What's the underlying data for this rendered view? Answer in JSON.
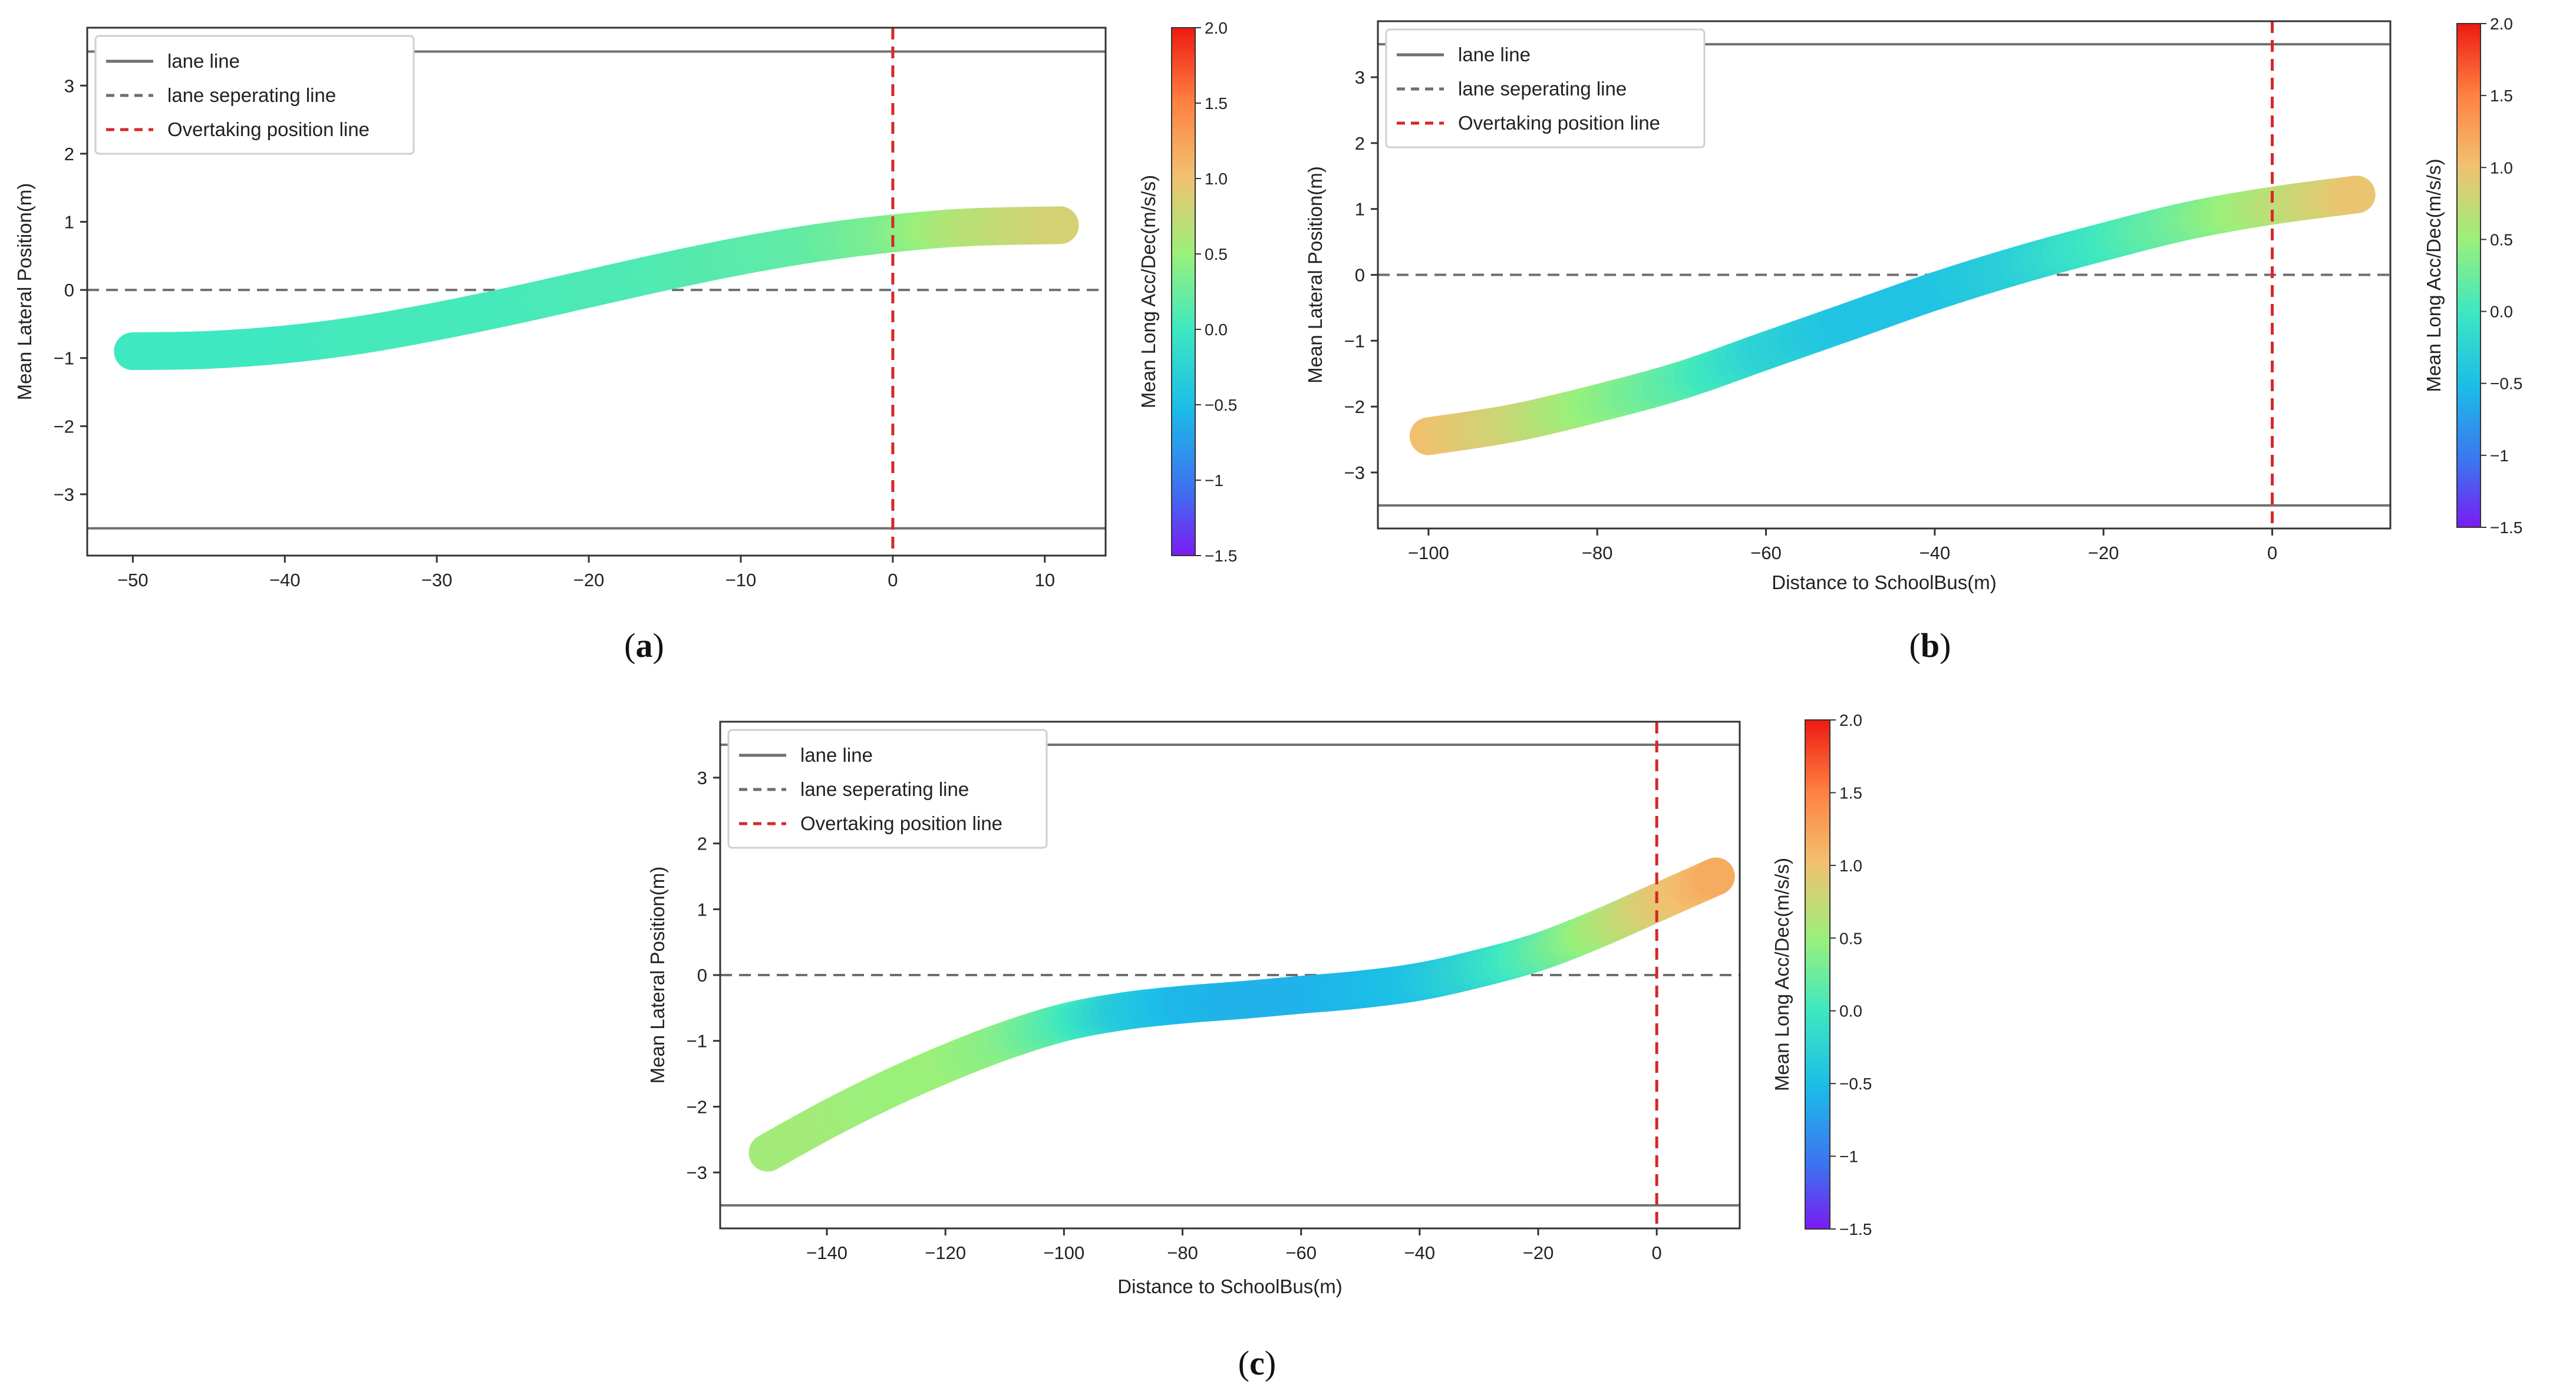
{
  "figure": {
    "colorbar_label": "Mean Long Acc/Dec(m/s/s)",
    "colorbar_range": [
      -1.5,
      2.0
    ],
    "colorbar_ticks": [
      "2.0",
      "1.5",
      "1.0",
      "0.5",
      "0.0",
      "−0.5",
      "−1",
      "−1.5"
    ],
    "colorbar_tick_values": [
      2.0,
      1.5,
      1.0,
      0.5,
      0.0,
      -0.5,
      -1.0,
      -1.5
    ],
    "legend": {
      "lane_line": "lane line",
      "separating_line": "lane seperating line",
      "overtaking_line": "Overtaking position line"
    },
    "colors": {
      "lane_line": "#707070",
      "separating_line": "#6e6e6e",
      "overtaking_line": "#d62728"
    }
  },
  "chart_data": [
    {
      "type": "line",
      "panel": "(a)",
      "caption_letter": "a",
      "ylabel": "Mean Lateral Position(m)",
      "xlabel": "",
      "xlim": [
        -53,
        14
      ],
      "ylim": [
        -3.9,
        3.85
      ],
      "xticks": [
        -50,
        -40,
        -30,
        -20,
        -10,
        0,
        10
      ],
      "xtick_labels": [
        "−50",
        "−40",
        "−30",
        "−20",
        "−10",
        "0",
        "10"
      ],
      "yticks": [
        -3,
        -2,
        -1,
        0,
        1,
        2,
        3
      ],
      "ytick_labels": [
        "−3",
        "−2",
        "−1",
        "0",
        "1",
        "2",
        "3"
      ],
      "lane_lines": [
        3.5,
        -3.5
      ],
      "separating_line": 0,
      "overtaking_position": 0,
      "trajectory": {
        "x": [
          -50,
          -45,
          -40,
          -35,
          -30,
          -25,
          -20,
          -15,
          -10,
          -5,
          0,
          5,
          11
        ],
        "y": [
          -0.9,
          -0.88,
          -0.8,
          -0.66,
          -0.46,
          -0.23,
          0.02,
          0.27,
          0.5,
          0.69,
          0.83,
          0.92,
          0.95
        ],
        "acc": [
          0.0,
          0.0,
          0.0,
          0.05,
          0.05,
          0.05,
          0.08,
          0.1,
          0.15,
          0.2,
          0.35,
          0.65,
          0.85
        ]
      }
    },
    {
      "type": "line",
      "panel": "(b)",
      "caption_letter": "b",
      "ylabel": "Mean Lateral Position(m)",
      "xlabel": "Distance to SchoolBus(m)",
      "xlim": [
        -106,
        14
      ],
      "ylim": [
        -3.85,
        3.85
      ],
      "xticks": [
        -100,
        -80,
        -60,
        -40,
        -20,
        0
      ],
      "xtick_labels": [
        "−100",
        "−80",
        "−60",
        "−40",
        "−20",
        "0"
      ],
      "yticks": [
        -3,
        -2,
        -1,
        0,
        1,
        2,
        3
      ],
      "ytick_labels": [
        "−3",
        "−2",
        "−1",
        "0",
        "1",
        "2",
        "3"
      ],
      "lane_lines": [
        3.5,
        -3.5
      ],
      "separating_line": 0,
      "overtaking_position": 0,
      "trajectory": {
        "x": [
          -100,
          -90,
          -80,
          -70,
          -60,
          -50,
          -40,
          -30,
          -20,
          -10,
          0,
          10
        ],
        "y": [
          -2.45,
          -2.25,
          -1.95,
          -1.6,
          -1.15,
          -0.7,
          -0.25,
          0.15,
          0.5,
          0.82,
          1.05,
          1.22
        ],
        "acc": [
          1.05,
          0.8,
          0.45,
          0.15,
          -0.25,
          -0.45,
          -0.45,
          -0.3,
          0.0,
          0.3,
          0.65,
          1.0
        ]
      }
    },
    {
      "type": "line",
      "panel": "(c)",
      "caption_letter": "c",
      "ylabel": "Mean Lateral Position(m)",
      "xlabel": "Distance to SchoolBus(m)",
      "xlim": [
        -158,
        14
      ],
      "ylim": [
        -3.85,
        3.85
      ],
      "xticks": [
        -140,
        -120,
        -100,
        -80,
        -60,
        -40,
        -20,
        0
      ],
      "xtick_labels": [
        "−140",
        "−120",
        "−100",
        "−80",
        "−60",
        "−40",
        "−20",
        "0"
      ],
      "yticks": [
        -3,
        -2,
        -1,
        0,
        1,
        2,
        3
      ],
      "ytick_labels": [
        "−3",
        "−2",
        "−1",
        "0",
        "1",
        "2",
        "3"
      ],
      "lane_lines": [
        3.5,
        -3.5
      ],
      "separating_line": 0,
      "overtaking_position": 0,
      "trajectory": {
        "x": [
          -150,
          -140,
          -130,
          -120,
          -110,
          -100,
          -90,
          -80,
          -70,
          -60,
          -50,
          -40,
          -30,
          -20,
          -10,
          0,
          10
        ],
        "y": [
          -2.7,
          -2.2,
          -1.75,
          -1.35,
          -1.0,
          -0.72,
          -0.55,
          -0.45,
          -0.38,
          -0.3,
          -0.22,
          -0.1,
          0.1,
          0.35,
          0.7,
          1.1,
          1.5
        ],
        "acc": [
          0.55,
          0.55,
          0.5,
          0.5,
          0.4,
          0.1,
          -0.35,
          -0.55,
          -0.6,
          -0.6,
          -0.55,
          -0.45,
          -0.2,
          0.15,
          0.55,
          0.9,
          1.2
        ]
      }
    }
  ]
}
